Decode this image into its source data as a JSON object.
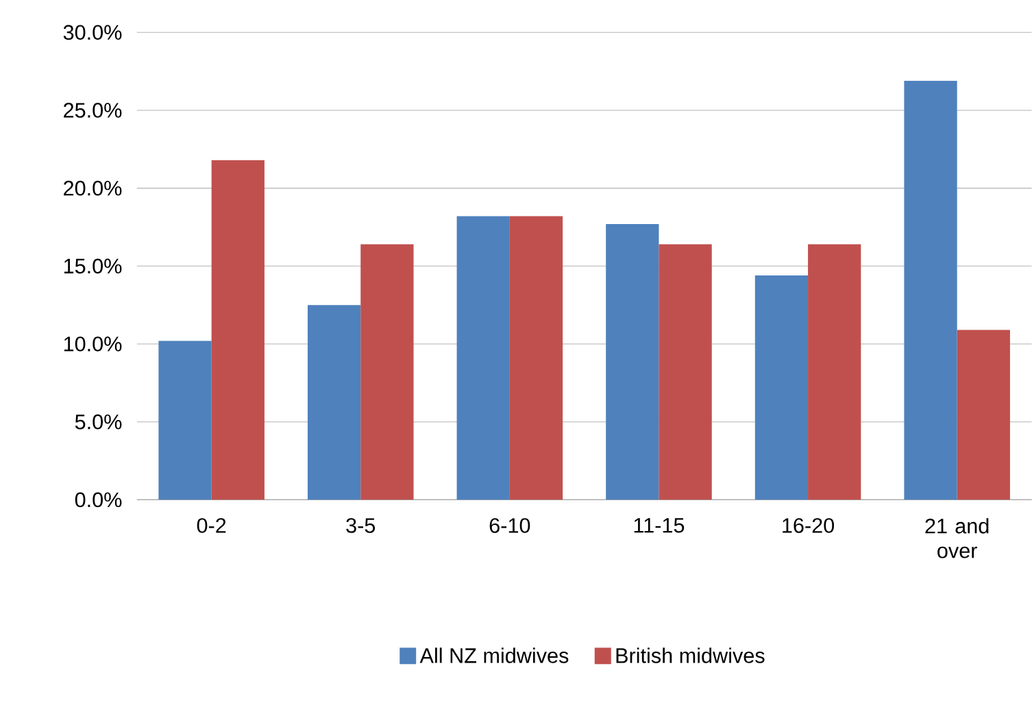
{
  "chart_data": {
    "type": "bar",
    "categories": [
      "0-2",
      "3-5",
      "6-10",
      "11-15",
      "16-20",
      "21 and over"
    ],
    "series": [
      {
        "name": "All NZ midwives",
        "color": "#4f81bd",
        "values": [
          10.2,
          12.5,
          18.2,
          17.7,
          14.4,
          26.9
        ]
      },
      {
        "name": "British midwives",
        "color": "#c0504d",
        "values": [
          21.8,
          16.4,
          18.2,
          16.4,
          16.4,
          10.9
        ]
      }
    ],
    "ylim": [
      0,
      30
    ],
    "yticks": [
      {
        "value": 0,
        "label": "0.0%"
      },
      {
        "value": 5,
        "label": "5.0%"
      },
      {
        "value": 10,
        "label": "10.0%"
      },
      {
        "value": 15,
        "label": "15.0%"
      },
      {
        "value": 20,
        "label": "20.0%"
      },
      {
        "value": 25,
        "label": "25.0%"
      },
      {
        "value": 30,
        "label": "30.0%"
      }
    ],
    "grid": "y",
    "legend": "bottom"
  }
}
